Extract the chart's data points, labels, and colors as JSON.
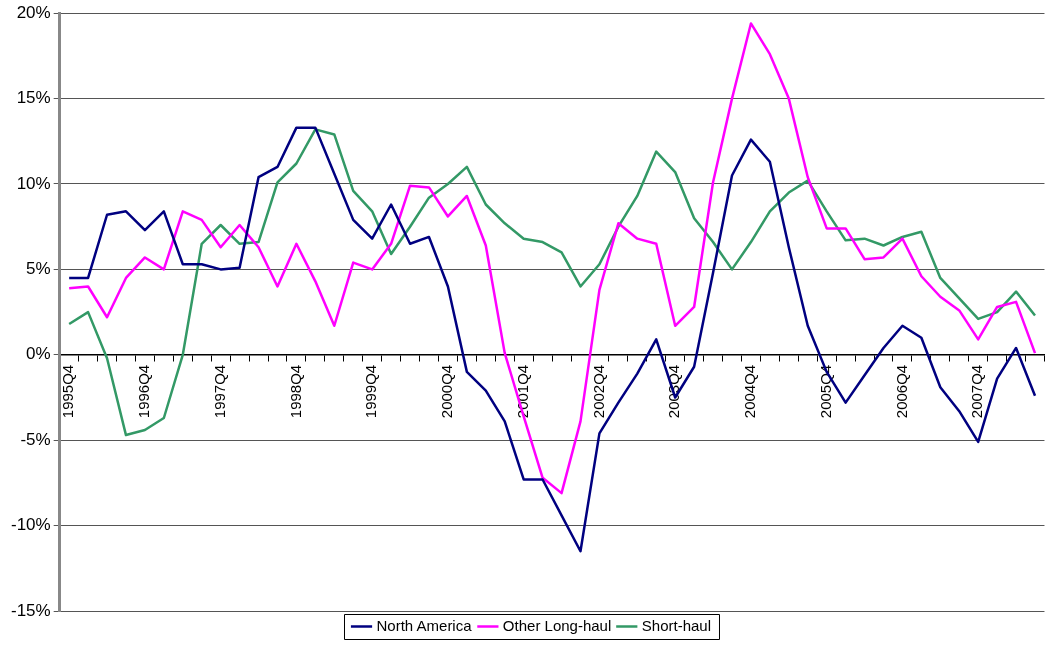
{
  "chart_data": {
    "type": "line",
    "categories": [
      "1995Q4",
      null,
      null,
      null,
      "1996Q4",
      null,
      null,
      null,
      "1997Q4",
      null,
      null,
      null,
      "1998Q4",
      null,
      null,
      null,
      "1999Q4",
      null,
      null,
      null,
      "2000Q4",
      null,
      null,
      null,
      "2001Q4",
      null,
      null,
      null,
      "2002Q4",
      null,
      null,
      null,
      "2003Q4",
      null,
      null,
      null,
      "2004Q4",
      null,
      null,
      null,
      "2005Q4",
      null,
      null,
      null,
      "2006Q4",
      null,
      null,
      null,
      "2007Q4",
      null,
      null,
      null
    ],
    "series": [
      {
        "name": "North America",
        "color": "#000080",
        "values": [
          4.5,
          4.5,
          8.2,
          8.4,
          7.3,
          8.4,
          5.3,
          5.3,
          5.0,
          5.1,
          10.4,
          11.0,
          13.3,
          13.3,
          10.6,
          7.9,
          6.8,
          8.8,
          6.5,
          6.9,
          4.0,
          -1.0,
          -2.1,
          -3.9,
          -7.3,
          -7.3,
          -9.4,
          -11.5,
          -4.6,
          -2.8,
          -1.1,
          0.9,
          -2.5,
          -0.7,
          4.8,
          10.5,
          12.6,
          11.3,
          6.3,
          1.7,
          -1.0,
          -2.8,
          -1.2,
          0.4,
          1.7,
          1.0,
          -1.9,
          -3.3,
          -5.1,
          -1.4,
          0.4,
          -2.4
        ]
      },
      {
        "name": "Other Long-haul",
        "color": "#ff00ff",
        "values": [
          3.9,
          4.0,
          2.2,
          4.5,
          5.7,
          5.0,
          8.4,
          7.9,
          6.3,
          7.6,
          6.3,
          4.0,
          6.5,
          4.3,
          1.7,
          5.4,
          5.0,
          6.5,
          9.9,
          9.8,
          8.1,
          9.3,
          6.4,
          0.1,
          -3.6,
          -7.2,
          -8.1,
          -3.9,
          3.8,
          7.7,
          6.8,
          6.5,
          1.7,
          2.8,
          10.1,
          15.0,
          19.4,
          17.6,
          15.0,
          10.4,
          7.4,
          7.4,
          5.6,
          5.7,
          6.8,
          4.6,
          3.4,
          2.6,
          0.9,
          2.8,
          3.1,
          0.1
        ]
      },
      {
        "name": "Short-haul",
        "color": "#339966",
        "values": [
          1.8,
          2.5,
          -0.2,
          -4.7,
          -4.4,
          -3.7,
          0.0,
          6.5,
          7.6,
          6.5,
          6.6,
          10.1,
          11.2,
          13.2,
          12.9,
          9.6,
          8.4,
          5.9,
          7.5,
          9.2,
          10.0,
          11.0,
          8.8,
          7.7,
          6.8,
          6.6,
          6.0,
          4.0,
          5.3,
          7.5,
          9.3,
          11.9,
          10.7,
          8.0,
          6.6,
          5.0,
          6.6,
          8.4,
          9.5,
          10.2,
          8.4,
          6.7,
          6.8,
          6.4,
          6.9,
          7.2,
          4.5,
          3.3,
          2.1,
          2.5,
          3.7,
          2.3
        ]
      }
    ],
    "ylim": [
      -15,
      20
    ],
    "yticks": [
      {
        "value": -15,
        "label": "-15%"
      },
      {
        "value": -10,
        "label": "-10%"
      },
      {
        "value": -5,
        "label": "-5%"
      },
      {
        "value": 0,
        "label": "0%"
      },
      {
        "value": 5,
        "label": "5%"
      },
      {
        "value": 10,
        "label": "10%"
      },
      {
        "value": 15,
        "label": "15%"
      },
      {
        "value": 20,
        "label": "20%"
      }
    ],
    "grid": "y",
    "legend": "bottom",
    "marker": "none",
    "line_style": "solid"
  }
}
